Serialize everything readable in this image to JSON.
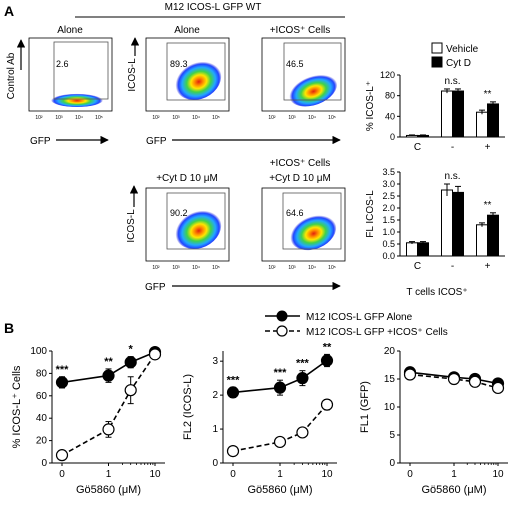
{
  "panels": {
    "a_label": "A",
    "b_label": "B",
    "header": "M12 ICOS-L GFP WT",
    "flow": {
      "control_ab_label": "Control Ab",
      "icosl_axis_label": "ICOS-L",
      "gfp_axis_label": "GFP",
      "plots": [
        {
          "title": "Alone",
          "value": "2.6"
        },
        {
          "title": "Alone",
          "value": "89.3"
        },
        {
          "title": "+ICOS⁺ Cells",
          "value": "46.5"
        },
        {
          "title": "+Cyt D 10 μM",
          "value": "90.2"
        },
        {
          "title_line1": "+ICOS⁺ Cells",
          "title_line2": "+Cyt D 10 μM",
          "value": "64.6"
        }
      ],
      "tick_labels": [
        "10²",
        "10³",
        "10⁴",
        "10⁵"
      ]
    }
  },
  "chart_data": [
    {
      "type": "bar",
      "id": "A-pct",
      "ylabel": "% ICOS-L⁺",
      "ylim": [
        0,
        120
      ],
      "yticks": [
        0,
        40,
        80,
        120
      ],
      "categories": [
        "C",
        "-",
        "+"
      ],
      "xlabel": "T cells ICOS⁺",
      "legend_position": "top-right",
      "series": [
        {
          "name": "Vehicle",
          "color": "#ffffff",
          "values": [
            3,
            89,
            48
          ],
          "err": [
            1,
            4,
            4
          ]
        },
        {
          "name": "Cyt D",
          "color": "#000000",
          "values": [
            3,
            89,
            64
          ],
          "err": [
            1,
            4,
            4
          ]
        }
      ],
      "annotations": [
        {
          "category": "-",
          "text": "n.s."
        },
        {
          "category": "+",
          "text": "**"
        }
      ]
    },
    {
      "type": "bar",
      "id": "A-fl",
      "ylabel": "FL ICOS-L",
      "ylim": [
        0,
        3.5
      ],
      "yticks": [
        0.0,
        0.5,
        1.0,
        1.5,
        2.0,
        2.5,
        3.0,
        3.5
      ],
      "ytick_labels": [
        "0.0",
        "0.5",
        "1.0",
        "1.5",
        "2.0",
        "2.5",
        "3.0",
        "3.5"
      ],
      "categories": [
        "C",
        "-",
        "+"
      ],
      "series": [
        {
          "name": "Vehicle",
          "color": "#ffffff",
          "values": [
            0.55,
            2.75,
            1.3
          ],
          "err": [
            0.05,
            0.25,
            0.08
          ]
        },
        {
          "name": "Cyt D",
          "color": "#000000",
          "values": [
            0.55,
            2.65,
            1.7
          ],
          "err": [
            0.05,
            0.25,
            0.1
          ]
        }
      ],
      "annotations": [
        {
          "category": "-",
          "text": "n.s."
        },
        {
          "category": "+",
          "text": "**"
        }
      ]
    },
    {
      "type": "line",
      "id": "B-pct",
      "xlabel": "Gö5860 (μM)",
      "ylabel": "% ICOS-L⁺ Cells",
      "ylim": [
        0,
        100
      ],
      "yticks": [
        0,
        20,
        40,
        60,
        80,
        100
      ],
      "xscale": "log",
      "xticks": [
        0,
        1,
        10
      ],
      "x": [
        0,
        1,
        3,
        10
      ],
      "series": [
        {
          "name": "M12 ICOS-L GFP Alone",
          "marker": "filled",
          "values": [
            72,
            78,
            90,
            99
          ],
          "err": [
            5,
            6,
            5,
            2
          ]
        },
        {
          "name": "M12 ICOS-L GFP +ICOS⁺ Cells",
          "marker": "open",
          "values": [
            7,
            30,
            65,
            97
          ],
          "err": [
            2,
            7,
            12,
            3
          ]
        }
      ],
      "annotations": [
        "***",
        "**",
        "*"
      ]
    },
    {
      "type": "line",
      "id": "B-fl2",
      "xlabel": "Gö5860 (μM)",
      "ylabel": "FL2 (ICOS-L)",
      "ylim": [
        0,
        3.3
      ],
      "yticks": [
        0,
        1,
        2,
        3
      ],
      "xscale": "log",
      "xticks": [
        0,
        1,
        10
      ],
      "x": [
        0,
        1,
        3,
        10
      ],
      "series": [
        {
          "name": "M12 ICOS-L GFP Alone",
          "marker": "filled",
          "values": [
            2.08,
            2.22,
            2.5,
            3.02
          ],
          "err": [
            0.15,
            0.22,
            0.22,
            0.18
          ]
        },
        {
          "name": "M12 ICOS-L GFP +ICOS⁺ Cells",
          "marker": "open",
          "values": [
            0.35,
            0.62,
            0.9,
            1.72
          ],
          "err": [
            0.05,
            0.05,
            0.07,
            0.15
          ]
        }
      ],
      "annotations": [
        "***",
        "***",
        "***",
        "**"
      ]
    },
    {
      "type": "line",
      "id": "B-fl1",
      "xlabel": "Gö5860 (μM)",
      "ylabel": "FL1 (GFP)",
      "ylim": [
        0,
        20
      ],
      "yticks": [
        0,
        5,
        10,
        15,
        20
      ],
      "xscale": "log",
      "xticks": [
        0,
        1,
        10
      ],
      "x": [
        0,
        1,
        3,
        10
      ],
      "series": [
        {
          "name": "M12 ICOS-L GFP Alone",
          "marker": "filled",
          "values": [
            16.2,
            15.3,
            15.0,
            14.2
          ],
          "err": [
            0.6,
            0.5,
            0.5,
            0.6
          ]
        },
        {
          "name": "M12 ICOS-L GFP +ICOS⁺ Cells",
          "marker": "open",
          "values": [
            15.8,
            15.0,
            14.5,
            13.4
          ],
          "err": [
            0.6,
            0.5,
            0.5,
            0.6
          ]
        }
      ]
    }
  ]
}
